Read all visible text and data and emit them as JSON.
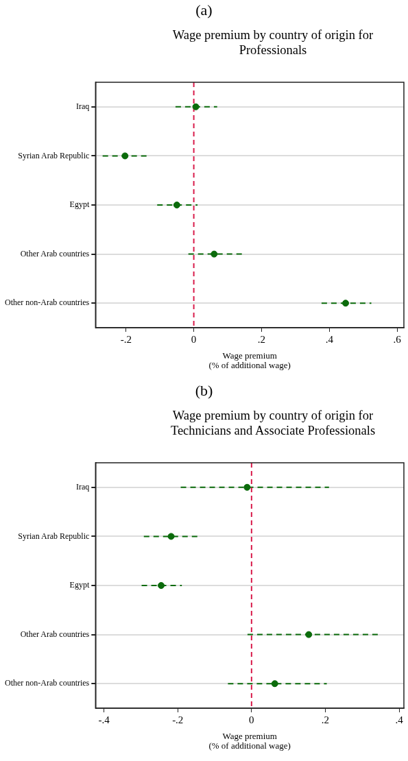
{
  "chart_data": [
    {
      "type": "scatter",
      "annotations": [
        "(a)"
      ],
      "title": "Wage premium by country of origin for Professionals",
      "xlabel": "Wage premium (% of additional wage)",
      "orientation": "horizontal",
      "categories": [
        "Iraq",
        "Syrian Arab Republic",
        "Egypt",
        "Other Arab countries",
        "Other non-Arab countries"
      ],
      "color": "#0b6b0b",
      "marker": "circle",
      "values": [
        0.006,
        -0.203,
        -0.05,
        0.06,
        0.448
      ],
      "errors": [
        [
          -0.054,
          0.069
        ],
        [
          -0.269,
          -0.136
        ],
        [
          -0.108,
          0.011
        ],
        [
          -0.016,
          0.143
        ],
        [
          0.377,
          0.524
        ]
      ],
      "xlim": [
        -0.29,
        0.62
      ],
      "xticks": [
        {
          "value": -0.2,
          "label": "-.2"
        },
        0,
        {
          "value": 0.2,
          "label": ".2"
        },
        {
          "value": 0.4,
          "label": ".4"
        },
        {
          "value": 0.6,
          "label": ".6"
        }
      ],
      "ref_lines": [
        {
          "axis": "x",
          "value": 0,
          "color": "#d81b4a",
          "line_style": "dashed"
        }
      ],
      "grid": "y"
    },
    {
      "type": "scatter",
      "annotations": [
        "(b)"
      ],
      "title": "Wage premium by country of origin for Technicians and Associate Professionals",
      "xlabel": "Wage premium (% of additional wage)",
      "orientation": "horizontal",
      "categories": [
        "Iraq",
        "Syrian Arab Republic",
        "Egypt",
        "Other Arab countries",
        "Other non-Arab countries"
      ],
      "color": "#0b6b0b",
      "marker": "circle",
      "values": [
        -0.012,
        -0.218,
        -0.245,
        0.155,
        0.063
      ],
      "errors": [
        [
          -0.192,
          0.21
        ],
        [
          -0.292,
          -0.139
        ],
        [
          -0.298,
          -0.189
        ],
        [
          -0.011,
          0.343
        ],
        [
          -0.064,
          0.204
        ]
      ],
      "xlim": [
        -0.423,
        0.413
      ],
      "xticks": [
        {
          "value": -0.4,
          "label": "-.4"
        },
        {
          "value": -0.2,
          "label": "-.2"
        },
        0,
        {
          "value": 0.2,
          "label": ".2"
        },
        {
          "value": 0.4,
          "label": ".4"
        }
      ],
      "ref_lines": [
        {
          "axis": "x",
          "value": 0,
          "color": "#d81b4a",
          "line_style": "dashed"
        }
      ],
      "grid": "y"
    }
  ]
}
